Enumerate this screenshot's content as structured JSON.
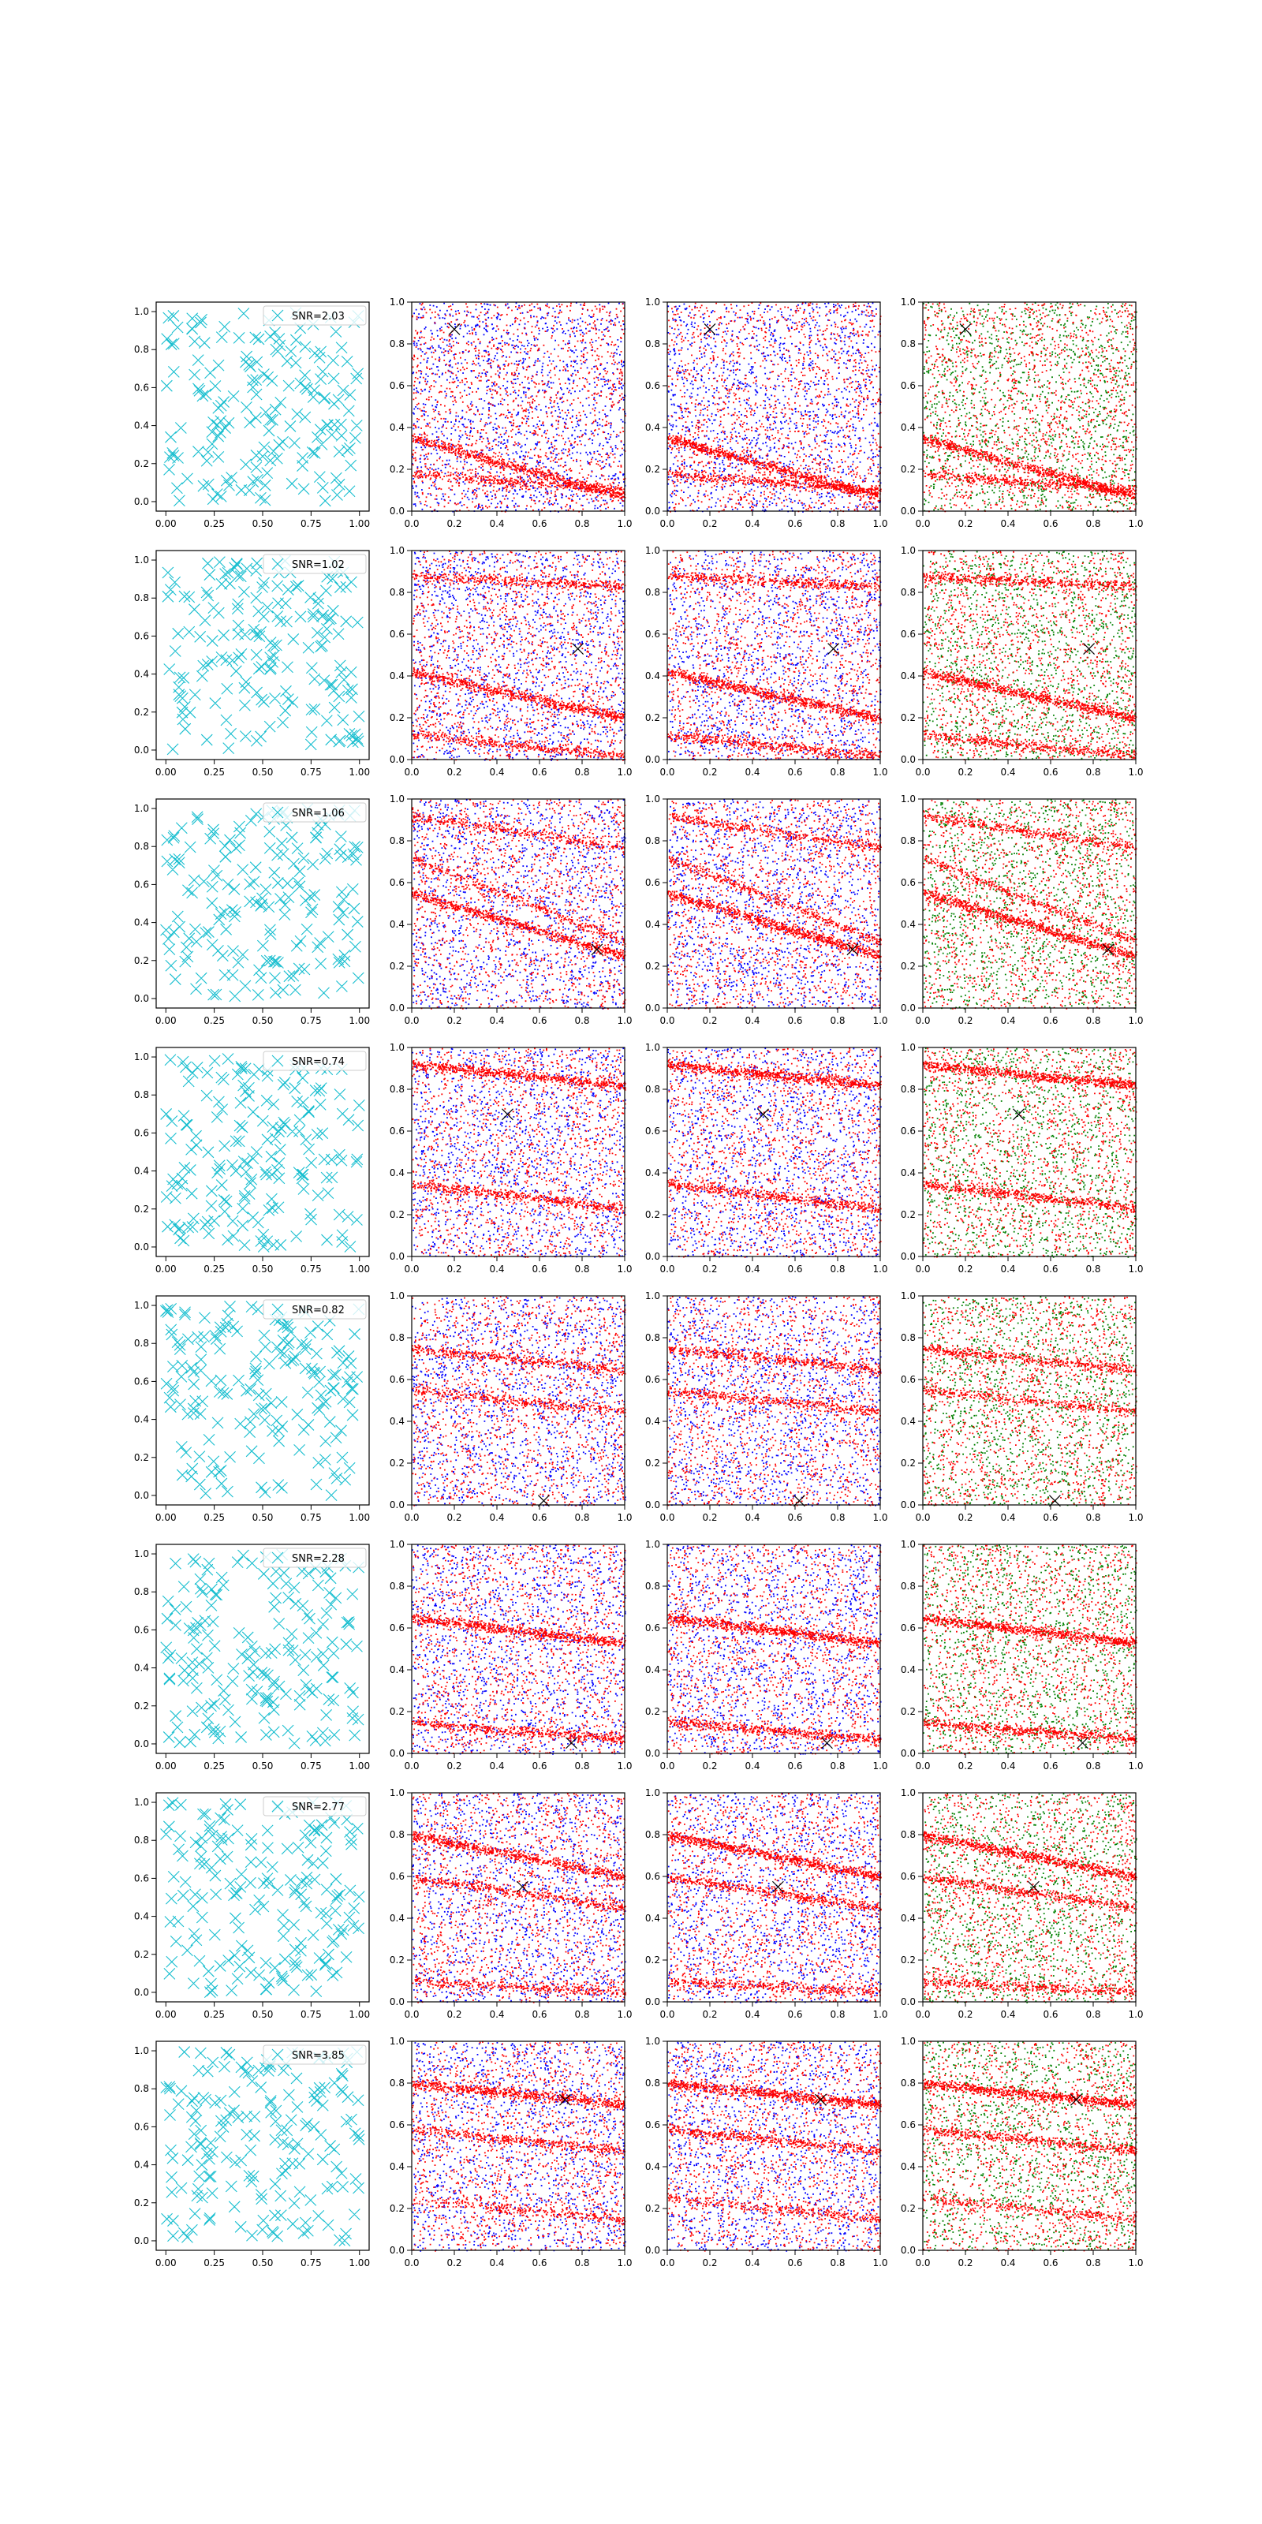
{
  "figure": {
    "rows": 8,
    "columns": 4,
    "background": "#ffffff"
  },
  "colors": {
    "cyan": "#17becf",
    "red": "#ff0000",
    "blue": "#0000ff",
    "green": "#008000",
    "marker": "#000000"
  },
  "icons": {
    "legend_marker": "x-marker-icon",
    "target_marker": "x-marker-icon"
  },
  "ticks": {
    "col0_x": [
      "0.00",
      "0.25",
      "0.50",
      "0.75",
      "1.00"
    ],
    "decimal": [
      "0.0",
      "0.2",
      "0.4",
      "0.6",
      "0.8",
      "1.0"
    ]
  },
  "chart_data": [
    {
      "row": 1,
      "legend": "SNR=2.03",
      "type": "scatter",
      "xlim": [
        0,
        1
      ],
      "ylim": [
        0,
        1
      ],
      "target": [
        0.2,
        0.87
      ],
      "bands": [
        {
          "y0": 0.35,
          "slope": -0.28,
          "weight": 1.0
        },
        {
          "y0": 0.18,
          "slope": -0.08,
          "weight": 0.6
        }
      ]
    },
    {
      "row": 2,
      "legend": "SNR=1.02",
      "type": "scatter",
      "xlim": [
        0,
        1
      ],
      "ylim": [
        0,
        1
      ],
      "target": [
        0.78,
        0.53
      ],
      "bands": [
        {
          "y0": 0.42,
          "slope": -0.22,
          "weight": 1.0
        },
        {
          "y0": 0.88,
          "slope": -0.05,
          "weight": 0.6
        },
        {
          "y0": 0.12,
          "slope": -0.1,
          "weight": 0.6
        }
      ]
    },
    {
      "row": 3,
      "legend": "SNR=1.06",
      "type": "scatter",
      "xlim": [
        0,
        1
      ],
      "ylim": [
        0,
        1
      ],
      "target": [
        0.87,
        0.28
      ],
      "bands": [
        {
          "y0": 0.55,
          "slope": -0.3,
          "weight": 1.0
        },
        {
          "y0": 0.92,
          "slope": -0.15,
          "weight": 0.5
        },
        {
          "y0": 0.72,
          "slope": -0.4,
          "weight": 0.5
        }
      ]
    },
    {
      "row": 4,
      "legend": "SNR=0.74",
      "type": "scatter",
      "xlim": [
        0,
        1
      ],
      "ylim": [
        0,
        1
      ],
      "target": [
        0.45,
        0.68
      ],
      "bands": [
        {
          "y0": 0.92,
          "slope": -0.1,
          "weight": 1.0
        },
        {
          "y0": 0.35,
          "slope": -0.12,
          "weight": 0.7
        }
      ]
    },
    {
      "row": 5,
      "legend": "SNR=0.82",
      "type": "scatter",
      "xlim": [
        0,
        1
      ],
      "ylim": [
        0,
        1
      ],
      "target": [
        0.62,
        0.02
      ],
      "bands": [
        {
          "y0": 0.75,
          "slope": -0.1,
          "weight": 0.6
        },
        {
          "y0": 0.55,
          "slope": -0.1,
          "weight": 0.5
        }
      ]
    },
    {
      "row": 6,
      "legend": "SNR=2.28",
      "type": "scatter",
      "xlim": [
        0,
        1
      ],
      "ylim": [
        0,
        1
      ],
      "target": [
        0.75,
        0.05
      ],
      "bands": [
        {
          "y0": 0.65,
          "slope": -0.12,
          "weight": 1.0
        },
        {
          "y0": 0.15,
          "slope": -0.08,
          "weight": 0.7
        }
      ]
    },
    {
      "row": 7,
      "legend": "SNR=2.77",
      "type": "scatter",
      "xlim": [
        0,
        1
      ],
      "ylim": [
        0,
        1
      ],
      "target": [
        0.52,
        0.55
      ],
      "bands": [
        {
          "y0": 0.8,
          "slope": -0.2,
          "weight": 1.0
        },
        {
          "y0": 0.6,
          "slope": -0.15,
          "weight": 0.6
        },
        {
          "y0": 0.1,
          "slope": -0.05,
          "weight": 0.5
        }
      ]
    },
    {
      "row": 8,
      "legend": "SNR=3.85",
      "type": "scatter",
      "xlim": [
        0,
        1
      ],
      "ylim": [
        0,
        1
      ],
      "target": [
        0.72,
        0.72
      ],
      "bands": [
        {
          "y0": 0.8,
          "slope": -0.1,
          "weight": 1.0
        },
        {
          "y0": 0.58,
          "slope": -0.1,
          "weight": 0.6
        },
        {
          "y0": 0.25,
          "slope": -0.1,
          "weight": 0.4
        }
      ]
    }
  ]
}
